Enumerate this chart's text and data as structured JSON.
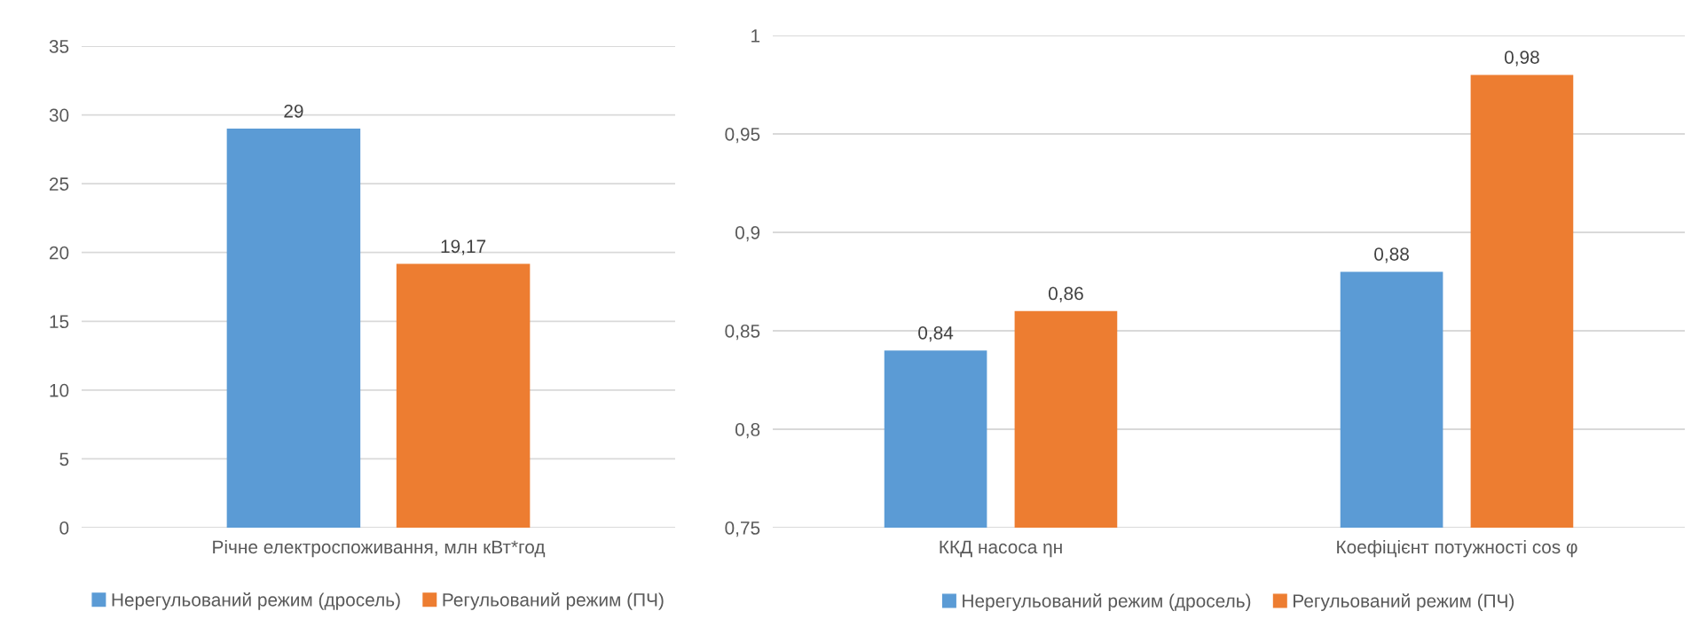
{
  "chart_data": [
    {
      "type": "bar",
      "categories": [
        "Річне електроспоживання, млн кВт*год"
      ],
      "series": [
        {
          "name": "Нерегульований режим (дросель)",
          "color": "#5b9bd5",
          "values": [
            29
          ],
          "value_labels": [
            "29"
          ]
        },
        {
          "name": "Регульований режим (ПЧ)",
          "color": "#ed7d31",
          "values": [
            19.17
          ],
          "value_labels": [
            "19,17"
          ]
        }
      ],
      "ylim": [
        0,
        35
      ],
      "yticks": [
        0,
        5,
        10,
        15,
        20,
        25,
        30,
        35
      ],
      "grid": "y",
      "legend": "bottom"
    },
    {
      "type": "bar",
      "categories": [
        "ККД насоса ηн",
        "Коефіцієнт потужності cos φ"
      ],
      "series": [
        {
          "name": "Нерегульований режим (дросель)",
          "color": "#5b9bd5",
          "values": [
            0.84,
            0.88
          ],
          "value_labels": [
            "0,84",
            "0,88"
          ]
        },
        {
          "name": "Регульований режим (ПЧ)",
          "color": "#ed7d31",
          "values": [
            0.86,
            0.98
          ],
          "value_labels": [
            "0,86",
            "0,98"
          ]
        }
      ],
      "ylim": [
        0.75,
        1
      ],
      "yticks": [
        {
          "value": 0.75,
          "label": "0,75"
        },
        {
          "value": 0.8,
          "label": "0,8"
        },
        {
          "value": 0.85,
          "label": "0,85"
        },
        {
          "value": 0.9,
          "label": "0,9"
        },
        {
          "value": 0.95,
          "label": "0,95"
        },
        {
          "value": 1,
          "label": "1"
        }
      ],
      "grid": "y",
      "legend": "bottom"
    }
  ]
}
